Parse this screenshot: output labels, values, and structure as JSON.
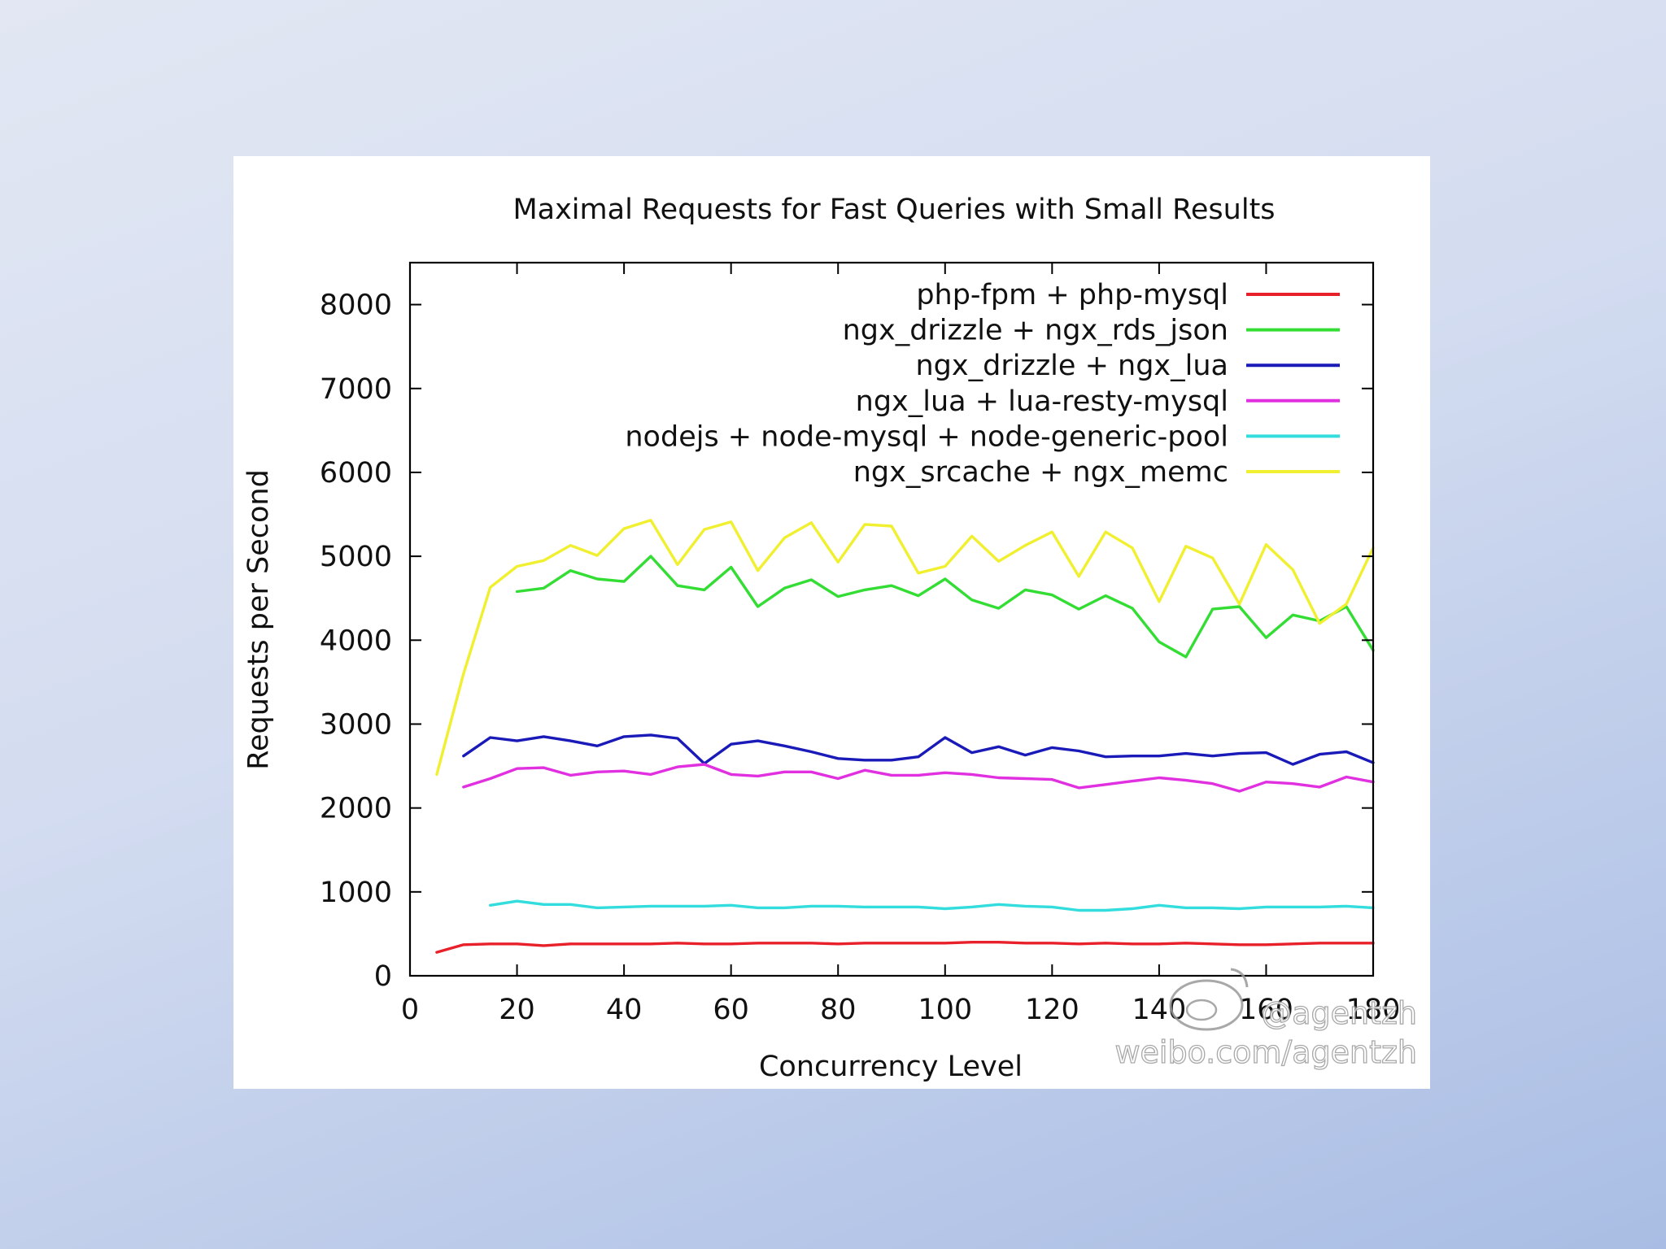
{
  "chart_data": {
    "type": "line",
    "title": "Maximal Requests for Fast Queries with Small Results",
    "xlabel": "Concurrency Level",
    "ylabel": "Requests per Second",
    "xlim": [
      0,
      180
    ],
    "ylim": [
      0,
      8500
    ],
    "xticks": [
      "0",
      "20",
      "40",
      "60",
      "80",
      "100",
      "120",
      "140",
      "160",
      "180"
    ],
    "yticks": [
      "0",
      "1000",
      "2000",
      "3000",
      "4000",
      "5000",
      "6000",
      "7000",
      "8000"
    ],
    "grid": false,
    "legend_position": "top-right",
    "series": [
      {
        "name": "php-fpm + php-mysql",
        "color": "#e8202a",
        "x": [
          5,
          10,
          15,
          20,
          25,
          30,
          35,
          40,
          45,
          50,
          55,
          60,
          65,
          70,
          75,
          80,
          85,
          90,
          95,
          100,
          105,
          110,
          115,
          120,
          125,
          130,
          135,
          140,
          145,
          150,
          155,
          160,
          165,
          170,
          175,
          180
        ],
        "y": [
          280,
          370,
          380,
          380,
          360,
          380,
          380,
          380,
          380,
          390,
          380,
          380,
          390,
          390,
          390,
          380,
          390,
          390,
          390,
          390,
          400,
          400,
          390,
          390,
          380,
          390,
          380,
          380,
          390,
          380,
          370,
          370,
          380,
          390,
          390,
          390
        ]
      },
      {
        "name": "ngx_drizzle + ngx_rds_json",
        "color": "#33dd33",
        "x": [
          20,
          25,
          30,
          35,
          40,
          45,
          50,
          55,
          60,
          65,
          70,
          75,
          80,
          85,
          90,
          95,
          100,
          105,
          110,
          115,
          120,
          125,
          130,
          135,
          140,
          145,
          150,
          155,
          160,
          165,
          170,
          175,
          180
        ],
        "y": [
          4580,
          4620,
          4830,
          4730,
          4700,
          5000,
          4650,
          4600,
          4870,
          4400,
          4620,
          4720,
          4520,
          4600,
          4650,
          4530,
          4730,
          4480,
          4380,
          4600,
          4540,
          4370,
          4530,
          4380,
          3980,
          3800,
          4370,
          4400,
          4030,
          4300,
          4230,
          4400,
          3880
        ]
      },
      {
        "name": "ngx_drizzle + ngx_lua",
        "color": "#1a1ab8",
        "x": [
          10,
          15,
          20,
          25,
          30,
          35,
          40,
          45,
          50,
          55,
          60,
          65,
          70,
          75,
          80,
          85,
          90,
          95,
          100,
          105,
          110,
          115,
          120,
          125,
          130,
          135,
          140,
          145,
          150,
          155,
          160,
          165,
          170,
          175,
          180
        ],
        "y": [
          2620,
          2840,
          2800,
          2850,
          2800,
          2740,
          2850,
          2870,
          2830,
          2530,
          2760,
          2800,
          2740,
          2670,
          2590,
          2570,
          2570,
          2610,
          2840,
          2660,
          2730,
          2630,
          2720,
          2680,
          2610,
          2620,
          2620,
          2650,
          2620,
          2650,
          2660,
          2520,
          2640,
          2670,
          2540
        ]
      },
      {
        "name": "ngx_lua + lua-resty-mysql",
        "color": "#e030e0",
        "x": [
          10,
          15,
          20,
          25,
          30,
          35,
          40,
          45,
          50,
          55,
          60,
          65,
          70,
          75,
          80,
          85,
          90,
          95,
          100,
          105,
          110,
          115,
          120,
          125,
          130,
          135,
          140,
          145,
          150,
          155,
          160,
          165,
          170,
          175,
          180
        ],
        "y": [
          2250,
          2350,
          2470,
          2480,
          2390,
          2430,
          2440,
          2400,
          2490,
          2520,
          2400,
          2380,
          2430,
          2430,
          2350,
          2450,
          2390,
          2390,
          2420,
          2400,
          2360,
          2350,
          2340,
          2240,
          2280,
          2320,
          2360,
          2330,
          2290,
          2200,
          2310,
          2290,
          2250,
          2370,
          2310
        ]
      },
      {
        "name": "nodejs + node-mysql + node-generic-pool",
        "color": "#33dddd",
        "x": [
          15,
          20,
          25,
          30,
          35,
          40,
          45,
          50,
          55,
          60,
          65,
          70,
          75,
          80,
          85,
          90,
          95,
          100,
          105,
          110,
          115,
          120,
          125,
          130,
          135,
          140,
          145,
          150,
          155,
          160,
          165,
          170,
          175,
          180
        ],
        "y": [
          840,
          890,
          850,
          850,
          810,
          820,
          830,
          830,
          830,
          840,
          810,
          810,
          830,
          830,
          820,
          820,
          820,
          800,
          820,
          850,
          830,
          820,
          780,
          780,
          800,
          840,
          810,
          810,
          800,
          820,
          820,
          820,
          830,
          810
        ]
      },
      {
        "name": "ngx_srcache + ngx_memc",
        "color": "#f0f030",
        "x": [
          5,
          10,
          15,
          20,
          25,
          30,
          35,
          40,
          45,
          50,
          55,
          60,
          65,
          70,
          75,
          80,
          85,
          90,
          95,
          100,
          105,
          110,
          115,
          120,
          125,
          130,
          135,
          140,
          145,
          150,
          155,
          160,
          165,
          170,
          175,
          180
        ],
        "y": [
          2400,
          3600,
          4630,
          4880,
          4950,
          5130,
          5010,
          5330,
          5430,
          4900,
          5320,
          5410,
          4830,
          5220,
          5400,
          4930,
          5380,
          5360,
          4800,
          4880,
          5240,
          4940,
          5130,
          5290,
          4760,
          5290,
          5100,
          4460,
          5120,
          4980,
          4430,
          5140,
          4840,
          4200,
          4430,
          5100
        ]
      }
    ]
  },
  "watermark": {
    "handle": "@agentzh",
    "site": "weibo.com/agentzh"
  }
}
